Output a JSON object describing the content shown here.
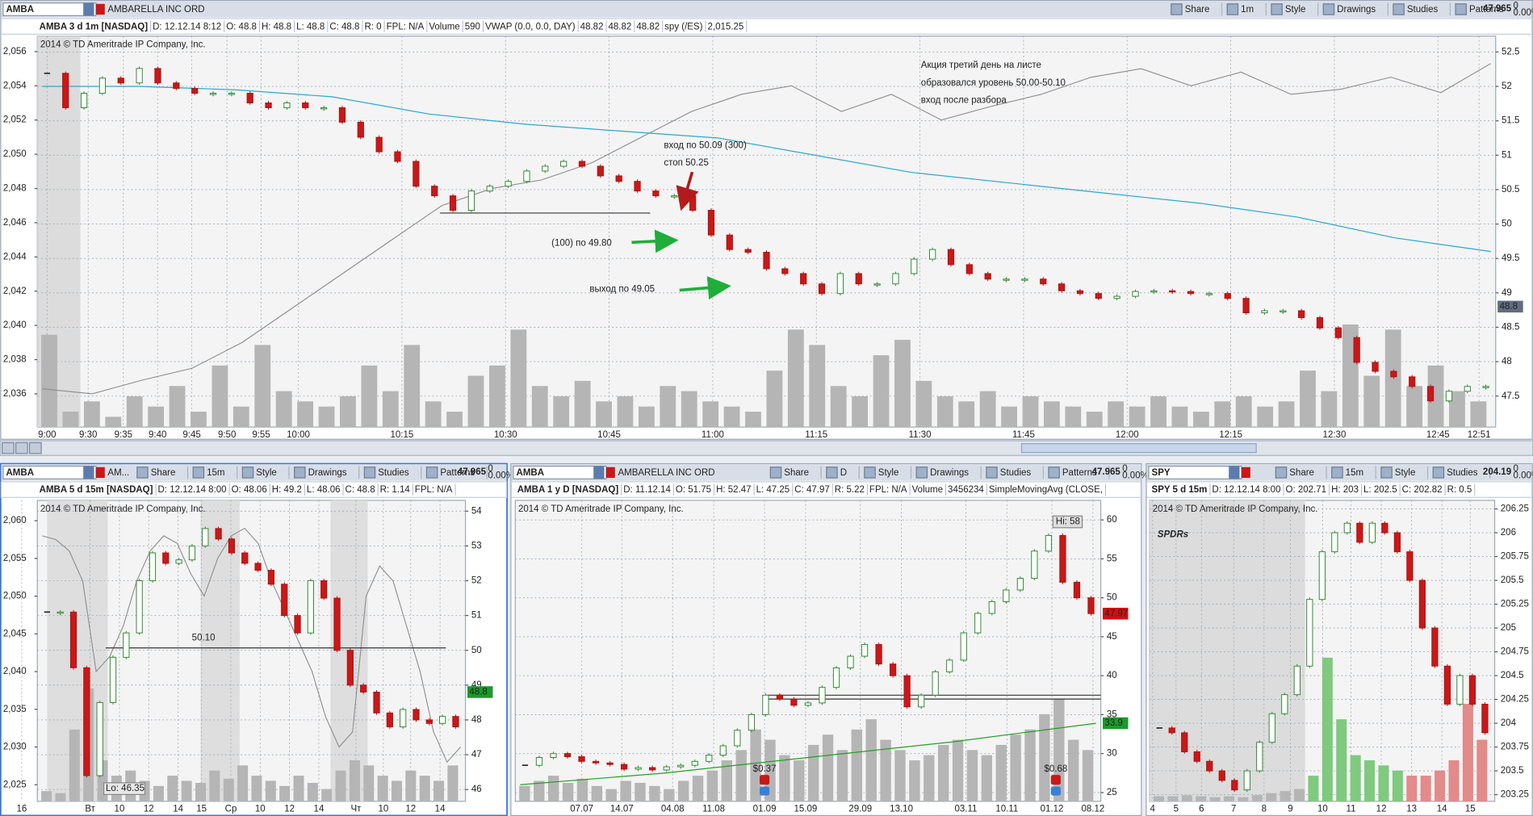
{
  "main": {
    "toolbar": {
      "symbol": "AMBA",
      "company": "AMBARELLA INC ORD",
      "buttons": [
        "Share",
        "1m",
        "Style",
        "Drawings",
        "Studies",
        "Patterns"
      ],
      "last": 47.965,
      "change": 0,
      "change_pct": "0.00%"
    },
    "header": [
      "AMBA 3 d 1m [NASDAQ]",
      "D: 12.12.14 8:12",
      "O: 48.8",
      "H: 48.8",
      "L: 48.8",
      "C: 48.8",
      "R: 0",
      "FPL: N/A",
      "Volume",
      "590",
      "VWAP (0.0, 0.0, DAY)",
      "48.82",
      "48.82",
      "48.82",
      "spy (/ES)",
      "2,015.25"
    ],
    "copyright": "2014 © TD Ameritrade IP Company, Inc.",
    "ylim": [
      47.05,
      52.73
    ],
    "yticks": [
      52.5,
      52,
      51.5,
      51,
      50.5,
      50,
      49.5,
      49,
      48.5,
      48,
      47.5
    ],
    "y2lim": [
      2034.06,
      2056.9
    ],
    "y2ticks": [
      {
        "value": 2056,
        "label": "2,056"
      },
      {
        "value": 2054,
        "label": "2,054"
      },
      {
        "value": 2052,
        "label": "2,052"
      },
      {
        "value": 2050,
        "label": "2,050"
      },
      {
        "value": 2048,
        "label": "2,048"
      },
      {
        "value": 2046,
        "label": "2,046"
      },
      {
        "value": 2044,
        "label": "2,044"
      },
      {
        "value": 2042,
        "label": "2,042"
      },
      {
        "value": 2040,
        "label": "2,040"
      },
      {
        "value": 2038,
        "label": "2,038"
      },
      {
        "value": 2036,
        "label": "2,036"
      }
    ],
    "time_labels": [
      "9:00",
      "9:30",
      "9:35",
      "9:40",
      "9:45",
      "9:50",
      "9:55",
      "10:00",
      "10:15",
      "10:30",
      "10:45",
      "11:00",
      "11:15",
      "11:30",
      "11:45",
      "12:00",
      "12:15",
      "12:30",
      "12:45",
      "12:51"
    ],
    "price": [
      52.19,
      51.69,
      51.9,
      52.12,
      52.05,
      52.26,
      52.05,
      51.97,
      51.9,
      51.9,
      51.9,
      51.76,
      51.69,
      51.76,
      51.69,
      51.69,
      51.48,
      51.26,
      51.05,
      50.91,
      50.55,
      50.41,
      50.2,
      50.48,
      50.55,
      50.62,
      50.77,
      50.84,
      50.91,
      50.84,
      50.7,
      50.62,
      50.48,
      50.41,
      50.41,
      50.2,
      49.84,
      49.63,
      49.59,
      49.35,
      49.28,
      49.13,
      48.99,
      49.28,
      49.13,
      49.13,
      49.28,
      49.49,
      49.63,
      49.41,
      49.28,
      49.2,
      49.2,
      49.2,
      49.13,
      49.03,
      48.99,
      48.92,
      48.95,
      49.02,
      49.03,
      49.02,
      48.99,
      48.99,
      48.92,
      48.71,
      48.74,
      48.74,
      48.64,
      48.49,
      48.35,
      47.99,
      47.86,
      47.78,
      47.64,
      47.43,
      47.57,
      47.64,
      47.64
    ],
    "price_tag": 48.8,
    "vwap": [
      52.0,
      52.0,
      51.95,
      51.85,
      51.6,
      51.45,
      51.35,
      51.25,
      51.0,
      50.75,
      50.6,
      50.45,
      50.3,
      50.1,
      49.8,
      49.6
    ],
    "spy": [
      2036.3,
      2036.0,
      2036.8,
      2037.5,
      2039,
      2041,
      2043,
      2045,
      2047,
      2048,
      2048.5,
      2049.5,
      2051,
      2052.5,
      2053.5,
      2054,
      2052.5,
      2053.5,
      2052,
      2052.8,
      2053.5,
      2054.5,
      2055,
      2054,
      2054.8,
      2053.5,
      2053.8,
      2054.5,
      2053.6,
      2055.3
    ],
    "volume": [
      90,
      15,
      25,
      10,
      30,
      20,
      40,
      15,
      60,
      20,
      80,
      35,
      25,
      20,
      30,
      60,
      35,
      80,
      25,
      15,
      50,
      60,
      95,
      40,
      30,
      45,
      25,
      30,
      20,
      40,
      35,
      25,
      20,
      15,
      55,
      95,
      80,
      40,
      30,
      70,
      85,
      45,
      30,
      25,
      35,
      20,
      30,
      25,
      20,
      15,
      25,
      20,
      30,
      20,
      15,
      25,
      30,
      20,
      25,
      55,
      35,
      100,
      50,
      95,
      40,
      60,
      35,
      25
    ],
    "level": 50.16,
    "annotations": [
      "Акция третий день на листе",
      "образовался уровень  50.00-50.10",
      "вход после разбора",
      "вход по 50.09 (300)",
      "стоп 50.25",
      "(100) по 49.80",
      "выход по 49.05"
    ]
  },
  "left": {
    "toolbar": {
      "symbol": "AMBA",
      "company": "AM...",
      "buttons": [
        "Share",
        "15m",
        "Style",
        "Drawings",
        "Studies",
        "Patterns"
      ],
      "last": 47.965,
      "change": 0,
      "change_pct": "0.00%"
    },
    "header": [
      "AMBA 5 d 15m [NASDAQ]",
      "D: 12.12.14 8:00",
      "O: 48.06",
      "H: 49.2",
      "L: 48.06",
      "C: 48.8",
      "R: 1.14",
      "FPL: N/A"
    ],
    "copyright": "2014 © TD Ameritrade IP Company, Inc.",
    "ylim": [
      45.66,
      54.31
    ],
    "yticks": [
      54,
      53,
      52,
      51,
      50,
      49,
      48,
      47,
      46
    ],
    "y2lim": [
      2022.8,
      2062.7
    ],
    "y2ticks": [
      {
        "value": 2060,
        "label": "2,060"
      },
      {
        "value": 2055,
        "label": "2,055"
      },
      {
        "value": 2050,
        "label": "2,050"
      },
      {
        "value": 2045,
        "label": "2,045"
      },
      {
        "value": 2040,
        "label": "2,040"
      },
      {
        "value": 2035,
        "label": "2,035"
      },
      {
        "value": 2030,
        "label": "2,030"
      },
      {
        "value": 2025,
        "label": "2,025"
      }
    ],
    "time_labels": [
      "16",
      "Вт",
      "10",
      "12",
      "14",
      "15",
      "Ср",
      "10",
      "12",
      "14",
      "Чт",
      "10",
      "12",
      "14"
    ],
    "price": [
      51.1,
      51.1,
      49.5,
      46.4,
      48.5,
      49.8,
      50.5,
      52.0,
      52.8,
      52.5,
      52.6,
      53.0,
      53.5,
      53.2,
      52.8,
      52.5,
      52.3,
      51.9,
      51.0,
      50.5,
      52.0,
      51.5,
      50.0,
      49.0,
      48.8,
      48.2,
      47.8,
      48.3,
      48.0,
      47.9,
      48.1,
      47.8
    ],
    "price_tag": 48.8,
    "spy": [
      2058,
      2057.5,
      2056,
      2052,
      2040,
      2042,
      2046,
      2052,
      2056,
      2058,
      2057,
      2053,
      2050,
      2055,
      2058,
      2059,
      2057,
      2052,
      2048,
      2044,
      2040,
      2034,
      2030,
      2032,
      2050,
      2054,
      2052,
      2046,
      2040,
      2032,
      2028,
      2030
    ],
    "volume": [
      10,
      8,
      70,
      110,
      40,
      25,
      30,
      20,
      15,
      25,
      20,
      18,
      30,
      22,
      35,
      25,
      20,
      15,
      25,
      18,
      12,
      30,
      40,
      35,
      25,
      20,
      30,
      25,
      20,
      35
    ],
    "level": 50.07,
    "level_label": "50.10",
    "low_label": "Lo: 46.35"
  },
  "middle": {
    "toolbar": {
      "symbol": "AMBA",
      "company": "AMBARELLA INC ORD",
      "buttons": [
        "Share",
        "D",
        "Style",
        "Drawings",
        "Studies",
        "Patterns"
      ],
      "last": 47.965,
      "change": 0,
      "change_pct": "0.00%"
    },
    "header": [
      "AMBA 1 y D [NASDAQ]",
      "D: 11.12.14",
      "O: 51.75",
      "H: 52.47",
      "L: 47.25",
      "C: 47.97",
      "R: 5.22",
      "FPL: N/A",
      "Volume",
      "3456234",
      "SimpleMovingAvg (CLOSE,"
    ],
    "copyright": "2014 © TD Ameritrade IP Company, Inc.",
    "ylim": [
      23.87,
      62.51
    ],
    "yticks": [
      60,
      55,
      50,
      45,
      40,
      35,
      30,
      25
    ],
    "time_labels": [
      "07.07",
      "14.07",
      "04.08",
      "11.08",
      "01.09",
      "15.09",
      "29.09",
      "13.10",
      "03.11",
      "10.11",
      "01.12",
      "08.12"
    ],
    "price": [
      28.5,
      29.5,
      30.0,
      29.6,
      29.0,
      28.8,
      28.6,
      28.0,
      28.2,
      27.9,
      28.3,
      28.5,
      29.0,
      29.8,
      31.0,
      33.0,
      35.0,
      37.5,
      37.0,
      36.2,
      36.5,
      38.5,
      41.0,
      42.5,
      44.0,
      41.5,
      40.0,
      36.0,
      37.5,
      40.5,
      42.0,
      45.5,
      48.0,
      49.5,
      51.0,
      52.5,
      56.0,
      58.0,
      52.0,
      50.0,
      47.97
    ],
    "price_tag": 47.97,
    "sma": [
      26.0,
      27.5,
      29.5,
      31.5,
      33.9
    ],
    "sma_tag": 33.9,
    "volume": [
      15,
      20,
      25,
      18,
      22,
      15,
      12,
      20,
      18,
      15,
      12,
      20,
      25,
      30,
      40,
      50,
      70,
      60,
      45,
      40,
      55,
      65,
      50,
      70,
      80,
      60,
      50,
      40,
      45,
      55,
      60,
      50,
      45,
      55,
      65,
      70,
      85,
      100,
      60,
      50
    ],
    "levels": [
      37.5,
      37.0
    ],
    "high_label": "Hi: 58",
    "dividends": [
      "$0.37",
      "$0.68"
    ]
  },
  "right": {
    "toolbar": {
      "symbol": "SPY",
      "buttons": [
        "Share",
        "15m",
        "Style",
        "Studies"
      ],
      "last": 204.19,
      "change": 0,
      "change_pct": "0.00%"
    },
    "header": [
      "SPY 5 d 15m",
      "D: 12.12.14 8:00",
      "O: 202.71",
      "H: 203",
      "L: 202.5",
      "C: 202.82",
      "R: 0.5"
    ],
    "copyright": "2014 © TD Ameritrade IP Company, Inc.",
    "watermark": "SPDRs",
    "ylim": [
      203.18,
      206.34
    ],
    "yticks": [
      206.25,
      206,
      205.75,
      205.5,
      205.25,
      205,
      204.75,
      204.5,
      204.25,
      204,
      203.75,
      203.5,
      203.25
    ],
    "time_labels": [
      "4",
      "5",
      "6",
      "7",
      "8",
      "9",
      "10",
      "11",
      "12",
      "13",
      "14",
      "15"
    ],
    "price": [
      203.95,
      203.9,
      203.7,
      203.6,
      203.5,
      203.4,
      203.3,
      203.5,
      203.8,
      204.1,
      204.3,
      204.6,
      205.3,
      205.8,
      206.0,
      206.1,
      205.9,
      206.1,
      206.0,
      205.8,
      205.5,
      205.0,
      204.6,
      204.2,
      204.5,
      204.2,
      203.9
    ],
    "volume": [
      5,
      5,
      6,
      5,
      4,
      5,
      4,
      6,
      8,
      10,
      12,
      25,
      140,
      80,
      45,
      40,
      35,
      30,
      25,
      25,
      30,
      40,
      95,
      60
    ]
  }
}
